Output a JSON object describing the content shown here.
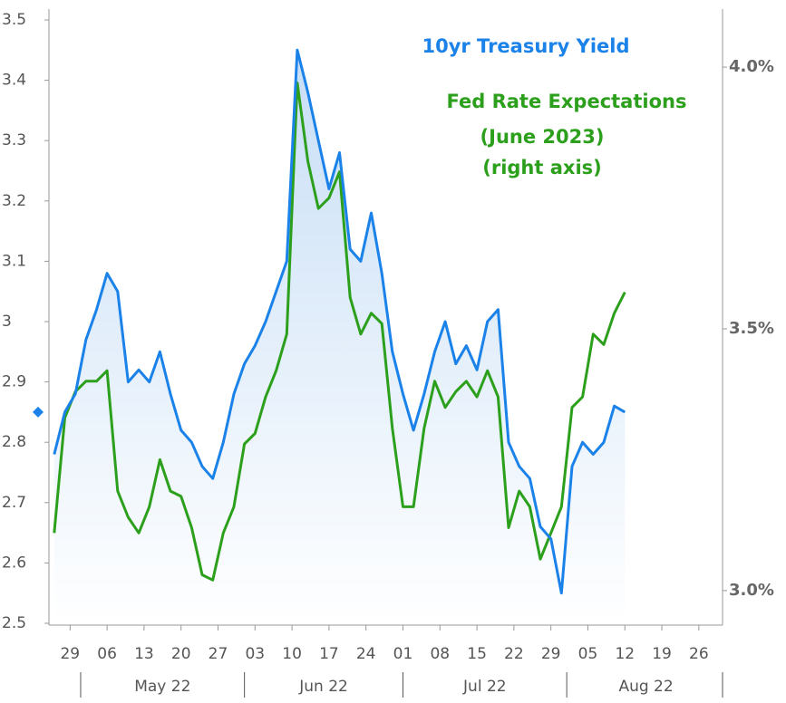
{
  "chart_data": {
    "type": "line",
    "annotations": [
      "10yr Treasury Yield",
      "Fed Rate Expectations",
      "(June 2023)",
      "(right axis)"
    ],
    "x": [
      "2022-04-26",
      "2022-04-28",
      "2022-04-30",
      "2022-05-02",
      "2022-05-04",
      "2022-05-06",
      "2022-05-08",
      "2022-05-10",
      "2022-05-12",
      "2022-05-14",
      "2022-05-16",
      "2022-05-18",
      "2022-05-20",
      "2022-05-22",
      "2022-05-24",
      "2022-05-26",
      "2022-05-28",
      "2022-05-30",
      "2022-06-01",
      "2022-06-03",
      "2022-06-05",
      "2022-06-07",
      "2022-06-09",
      "2022-06-11",
      "2022-06-13",
      "2022-06-15",
      "2022-06-17",
      "2022-06-19",
      "2022-06-21",
      "2022-06-23",
      "2022-06-25",
      "2022-06-27",
      "2022-06-29",
      "2022-07-01",
      "2022-07-03",
      "2022-07-05",
      "2022-07-07",
      "2022-07-09",
      "2022-07-11",
      "2022-07-13",
      "2022-07-15",
      "2022-07-17",
      "2022-07-19",
      "2022-07-21",
      "2022-07-23",
      "2022-07-25",
      "2022-07-27",
      "2022-07-29",
      "2022-07-31",
      "2022-08-02",
      "2022-08-04",
      "2022-08-06",
      "2022-08-08",
      "2022-08-10",
      "2022-08-12"
    ],
    "series": [
      {
        "name": "10yr Treasury Yield",
        "color": "#1a82e8",
        "axis": "y",
        "values": [
          2.78,
          2.85,
          2.88,
          2.97,
          3.02,
          3.08,
          3.05,
          2.9,
          2.92,
          2.9,
          2.95,
          2.88,
          2.82,
          2.8,
          2.76,
          2.74,
          2.8,
          2.88,
          2.93,
          2.96,
          3.0,
          3.05,
          3.1,
          3.45,
          3.38,
          3.3,
          3.22,
          3.28,
          3.12,
          3.1,
          3.18,
          3.08,
          2.95,
          2.88,
          2.82,
          2.88,
          2.95,
          3.0,
          2.93,
          2.96,
          2.92,
          3.0,
          3.02,
          2.8,
          2.76,
          2.74,
          2.66,
          2.64,
          2.55,
          2.76,
          2.8,
          2.78,
          2.8,
          2.86,
          2.85
        ]
      },
      {
        "name": "Fed Rate Expectations (June 2023)",
        "color": "#2ca01c",
        "axis": "y2",
        "values": [
          3.11,
          3.33,
          3.38,
          3.4,
          3.4,
          3.42,
          3.19,
          3.14,
          3.11,
          3.16,
          3.25,
          3.19,
          3.18,
          3.12,
          3.03,
          3.02,
          3.11,
          3.16,
          3.28,
          3.3,
          3.37,
          3.42,
          3.49,
          3.97,
          3.82,
          3.73,
          3.75,
          3.8,
          3.56,
          3.49,
          3.53,
          3.51,
          3.31,
          3.16,
          3.16,
          3.31,
          3.4,
          3.35,
          3.38,
          3.4,
          3.37,
          3.42,
          3.37,
          3.12,
          3.19,
          3.16,
          3.06,
          3.11,
          3.16,
          3.35,
          3.37,
          3.49,
          3.47,
          3.53,
          3.57
        ]
      }
    ],
    "xlim": [
      "2022-04-25",
      "2022-08-31"
    ],
    "xticks": [
      {
        "value": "2022-04-29",
        "label": "29"
      },
      {
        "value": "2022-05-06",
        "label": "06"
      },
      {
        "value": "2022-05-13",
        "label": "13"
      },
      {
        "value": "2022-05-20",
        "label": "20"
      },
      {
        "value": "2022-05-27",
        "label": "27"
      },
      {
        "value": "2022-06-03",
        "label": "03"
      },
      {
        "value": "2022-06-10",
        "label": "10"
      },
      {
        "value": "2022-06-17",
        "label": "17"
      },
      {
        "value": "2022-06-24",
        "label": "24"
      },
      {
        "value": "2022-07-01",
        "label": "01"
      },
      {
        "value": "2022-07-08",
        "label": "08"
      },
      {
        "value": "2022-07-15",
        "label": "15"
      },
      {
        "value": "2022-07-22",
        "label": "22"
      },
      {
        "value": "2022-07-29",
        "label": "29"
      },
      {
        "value": "2022-08-05",
        "label": "05"
      },
      {
        "value": "2022-08-12",
        "label": "12"
      },
      {
        "value": "2022-08-19",
        "label": "19"
      },
      {
        "value": "2022-08-26",
        "label": "26"
      }
    ],
    "months": [
      {
        "label": "May 22",
        "start": "2022-05-01",
        "end": "2022-06-01"
      },
      {
        "label": "Jun 22",
        "start": "2022-06-01",
        "end": "2022-07-01"
      },
      {
        "label": "Jul 22",
        "start": "2022-07-01",
        "end": "2022-08-01"
      },
      {
        "label": "Aug 22",
        "start": "2022-08-01",
        "end": "2022-08-31"
      }
    ],
    "ylim": [
      2.497,
      3.518
    ],
    "yticks": [
      2.5,
      2.6,
      2.7,
      2.8,
      2.9,
      3,
      3.1,
      3.2,
      3.3,
      3.4,
      3.5
    ],
    "y2lim": [
      2.934,
      4.111
    ],
    "y2ticks": [
      {
        "value": 3.0,
        "label": "3.0%"
      },
      {
        "value": 3.5,
        "label": "3.5%"
      },
      {
        "value": 4.0,
        "label": "4.0%"
      }
    ],
    "grid": false
  }
}
